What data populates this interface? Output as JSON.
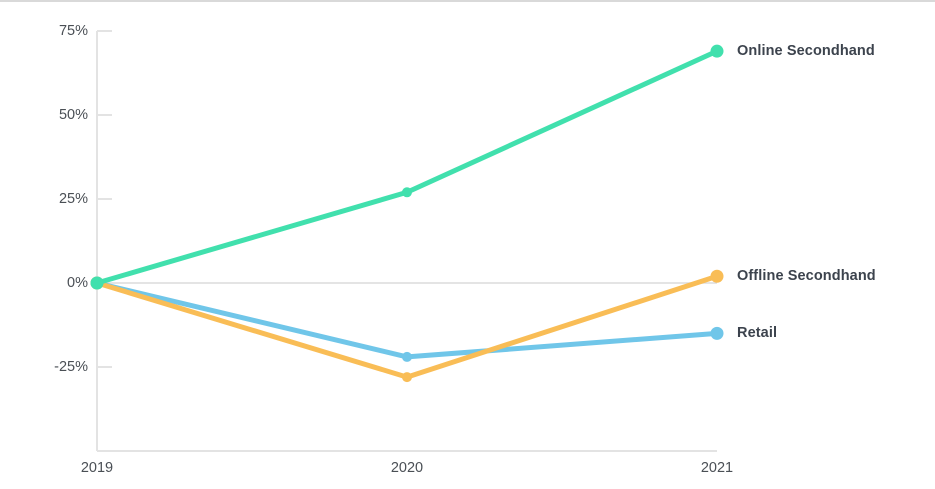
{
  "chart_data": {
    "type": "line",
    "categories": [
      "2019",
      "2020",
      "2021"
    ],
    "series": [
      {
        "name": "Online Secondhand",
        "color": "#41e0ad",
        "values": [
          0,
          27,
          69
        ]
      },
      {
        "name": "Offline Secondhand",
        "color": "#f9bd56",
        "values": [
          0,
          -28,
          2
        ]
      },
      {
        "name": "Retail",
        "color": "#70c6e9",
        "values": [
          0,
          -22,
          -15
        ]
      }
    ],
    "yticks": [
      {
        "label": "75%",
        "value": 75
      },
      {
        "label": "50%",
        "value": 50
      },
      {
        "label": "25%",
        "value": 25
      },
      {
        "label": "0%",
        "value": 0
      },
      {
        "label": "-25%",
        "value": -25
      }
    ],
    "ylim": [
      -50,
      75
    ],
    "title": "",
    "xlabel": "",
    "ylabel": "",
    "grid": "zero-line-only",
    "legend_position": "right-end-labels",
    "value_suffix": "%"
  },
  "colors": {
    "background": "#ffffff",
    "top_border": "#d9d9d9",
    "axis": "#e3e3e3",
    "zero_line": "#dcdcdc",
    "tick_text": "#4a4f55",
    "series_label_text": "#3c434d"
  }
}
